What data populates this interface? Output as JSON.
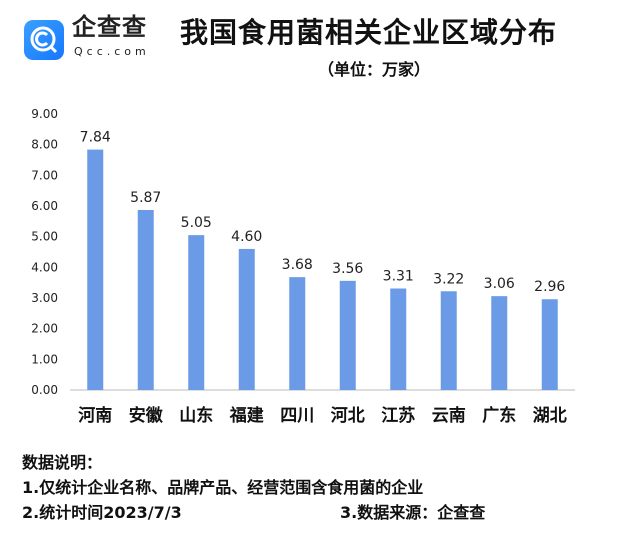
{
  "logo": {
    "name": "企查查",
    "domain": "Qcc.com"
  },
  "header": {
    "title": "我国食用菌相关企业区域分布",
    "unit": "（单位：万家）"
  },
  "chart_data": {
    "type": "bar",
    "title": "我国食用菌相关企业区域分布",
    "ylabel": "万家",
    "categories": [
      "河南",
      "安徽",
      "山东",
      "福建",
      "四川",
      "河北",
      "江苏",
      "云南",
      "广东",
      "湖北"
    ],
    "values": [
      7.84,
      5.87,
      5.05,
      4.6,
      3.68,
      3.56,
      3.31,
      3.22,
      3.06,
      2.96
    ],
    "value_labels": [
      "7.84",
      "5.87",
      "5.05",
      "4.60",
      "3.68",
      "3.56",
      "3.31",
      "3.22",
      "3.06",
      "2.96"
    ],
    "ylim": [
      0,
      9
    ],
    "yticks": [
      "0.00",
      "1.00",
      "2.00",
      "3.00",
      "4.00",
      "5.00",
      "6.00",
      "7.00",
      "8.00",
      "9.00"
    ],
    "bar_color": "#6b9be6",
    "grid": false
  },
  "notes": {
    "heading": "数据说明：",
    "line1": "1.仅统计企业名称、品牌产品、经营范围含食用菌的企业",
    "line2": "2.统计时间2023/7/3",
    "source": "3.数据来源：企查查"
  }
}
